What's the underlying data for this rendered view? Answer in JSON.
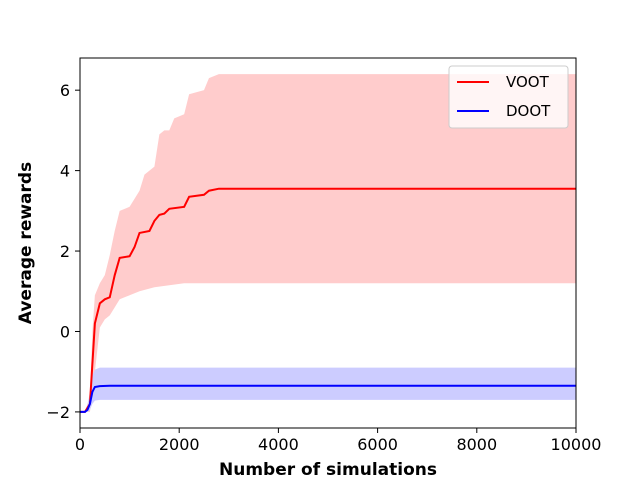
{
  "chart_data": {
    "type": "line",
    "xlabel": "Number of simulations",
    "ylabel": "Average rewards",
    "xlim": [
      0,
      10000
    ],
    "ylim": [
      -2.4,
      6.8
    ],
    "x_ticks": [
      0,
      2000,
      4000,
      6000,
      8000,
      10000
    ],
    "y_ticks": [
      -2,
      0,
      2,
      4,
      6
    ],
    "x_tick_labels": [
      "0",
      "2000",
      "4000",
      "6000",
      "8000",
      "10000"
    ],
    "y_tick_labels": [
      "−2",
      "0",
      "2",
      "4",
      "6"
    ],
    "grid": false,
    "legend": "top-right",
    "series": [
      {
        "name": "VOOT",
        "color": "#ff0000",
        "band_color": "#ffcccc",
        "mean": [
          [
            0,
            -2
          ],
          [
            100,
            -2
          ],
          [
            200,
            -1.8
          ],
          [
            250,
            -0.8
          ],
          [
            300,
            0.2
          ],
          [
            400,
            0.7
          ],
          [
            500,
            0.8
          ],
          [
            600,
            0.85
          ],
          [
            700,
            1.4
          ],
          [
            800,
            1.83
          ],
          [
            1000,
            1.87
          ],
          [
            1100,
            2.1
          ],
          [
            1200,
            2.45
          ],
          [
            1400,
            2.5
          ],
          [
            1500,
            2.75
          ],
          [
            1600,
            2.9
          ],
          [
            1700,
            2.93
          ],
          [
            1800,
            3.05
          ],
          [
            2100,
            3.1
          ],
          [
            2200,
            3.35
          ],
          [
            2500,
            3.4
          ],
          [
            2600,
            3.5
          ],
          [
            2800,
            3.55
          ],
          [
            10000,
            3.55
          ]
        ],
        "upper": [
          [
            0,
            -2
          ],
          [
            100,
            -2
          ],
          [
            200,
            -1.6
          ],
          [
            250,
            0.0
          ],
          [
            300,
            0.9
          ],
          [
            400,
            1.2
          ],
          [
            500,
            1.4
          ],
          [
            600,
            1.9
          ],
          [
            700,
            2.5
          ],
          [
            800,
            3.0
          ],
          [
            1000,
            3.1
          ],
          [
            1100,
            3.3
          ],
          [
            1200,
            3.5
          ],
          [
            1300,
            3.9
          ],
          [
            1400,
            4.0
          ],
          [
            1500,
            4.1
          ],
          [
            1600,
            4.9
          ],
          [
            1700,
            5.0
          ],
          [
            1800,
            5.0
          ],
          [
            1900,
            5.3
          ],
          [
            2100,
            5.4
          ],
          [
            2200,
            5.9
          ],
          [
            2500,
            6.0
          ],
          [
            2600,
            6.3
          ],
          [
            2800,
            6.4
          ],
          [
            10000,
            6.4
          ]
        ],
        "lower": [
          [
            0,
            -2
          ],
          [
            100,
            -2
          ],
          [
            200,
            -2.0
          ],
          [
            250,
            -1.6
          ],
          [
            300,
            -1.0
          ],
          [
            400,
            0.1
          ],
          [
            500,
            0.3
          ],
          [
            600,
            0.4
          ],
          [
            700,
            0.6
          ],
          [
            800,
            0.8
          ],
          [
            1000,
            0.9
          ],
          [
            1200,
            1.0
          ],
          [
            1500,
            1.1
          ],
          [
            1800,
            1.15
          ],
          [
            2100,
            1.2
          ],
          [
            10000,
            1.2
          ]
        ]
      },
      {
        "name": "DOOT",
        "color": "#0000ff",
        "band_color": "#ccccff",
        "mean": [
          [
            0,
            -2
          ],
          [
            100,
            -2
          ],
          [
            150,
            -1.95
          ],
          [
            200,
            -1.8
          ],
          [
            250,
            -1.5
          ],
          [
            300,
            -1.38
          ],
          [
            400,
            -1.36
          ],
          [
            600,
            -1.35
          ],
          [
            10000,
            -1.35
          ]
        ],
        "upper": [
          [
            0,
            -2
          ],
          [
            100,
            -2
          ],
          [
            150,
            -1.85
          ],
          [
            200,
            -1.5
          ],
          [
            250,
            -1.1
          ],
          [
            300,
            -0.95
          ],
          [
            400,
            -0.9
          ],
          [
            600,
            -0.9
          ],
          [
            10000,
            -0.9
          ]
        ],
        "lower": [
          [
            0,
            -2
          ],
          [
            100,
            -2
          ],
          [
            150,
            -2.0
          ],
          [
            200,
            -1.95
          ],
          [
            250,
            -1.8
          ],
          [
            300,
            -1.72
          ],
          [
            400,
            -1.7
          ],
          [
            600,
            -1.7
          ],
          [
            10000,
            -1.7
          ]
        ]
      }
    ]
  }
}
